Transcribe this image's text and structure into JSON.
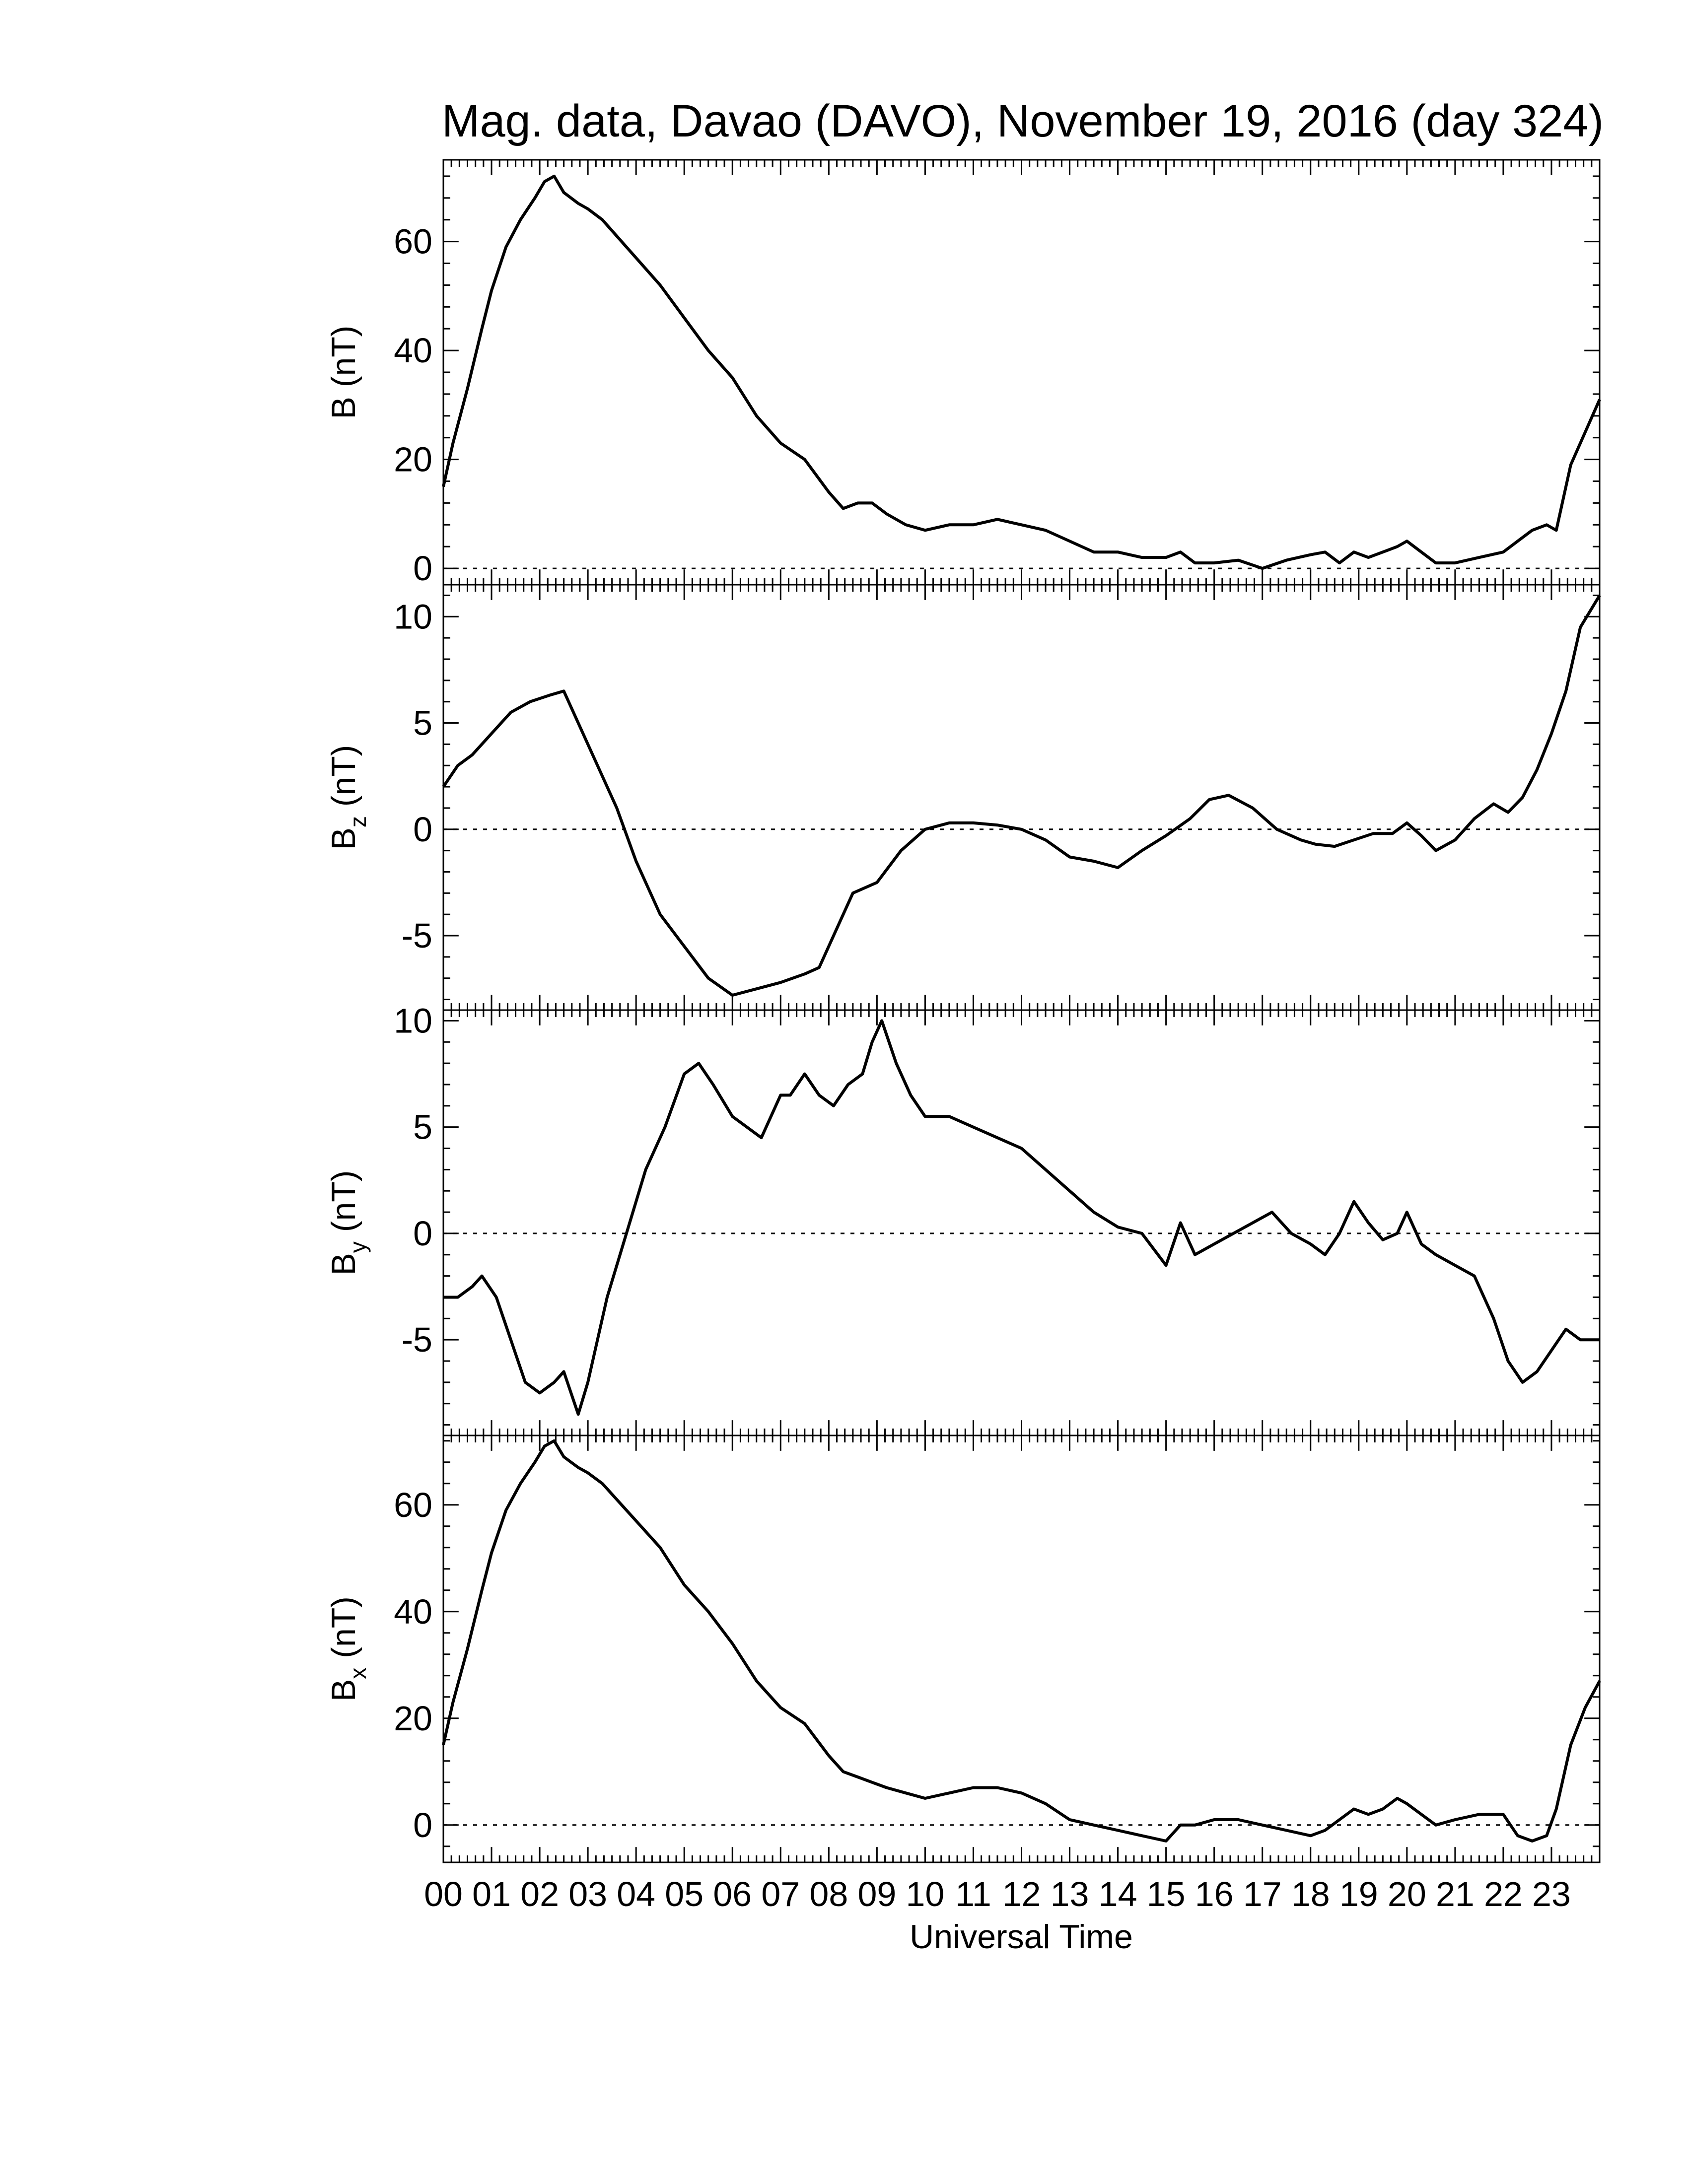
{
  "chart_data": {
    "title": "Mag. data, Davao (DAVO), November 19, 2016 (day 324)",
    "xlabel": "Universal Time",
    "x_tick_labels": [
      "00",
      "01",
      "02",
      "03",
      "04",
      "05",
      "06",
      "07",
      "08",
      "09",
      "10",
      "11",
      "12",
      "13",
      "14",
      "15",
      "16",
      "17",
      "18",
      "19",
      "20",
      "21",
      "22",
      "23"
    ],
    "xlim": [
      0,
      24
    ],
    "zero_line": "dotted",
    "panels": [
      {
        "type": "line",
        "ylabel_main": "B",
        "ylabel_sub": "",
        "ylabel_unit": " (nT)",
        "ylim": [
          -3,
          75
        ],
        "yticks": [
          0,
          20,
          40,
          60
        ],
        "x": [
          0,
          0.2,
          0.5,
          0.8,
          1.0,
          1.3,
          1.6,
          1.9,
          2.1,
          2.3,
          2.5,
          2.8,
          3.0,
          3.3,
          3.6,
          4.0,
          4.5,
          5.0,
          5.5,
          6.0,
          6.5,
          7.0,
          7.5,
          8.0,
          8.3,
          8.6,
          8.9,
          9.2,
          9.6,
          10.0,
          10.5,
          11.0,
          11.5,
          12.0,
          12.5,
          13.0,
          13.5,
          14.0,
          14.5,
          15.0,
          15.3,
          15.6,
          16.0,
          16.5,
          17.0,
          17.5,
          18.0,
          18.3,
          18.6,
          18.9,
          19.2,
          19.5,
          19.8,
          20.0,
          20.3,
          20.6,
          21.0,
          21.5,
          22.0,
          22.3,
          22.6,
          22.9,
          23.1,
          23.4,
          23.7,
          24.0
        ],
        "y": [
          15,
          23,
          33,
          44,
          51,
          59,
          64,
          68,
          71,
          72,
          69,
          67,
          66,
          64,
          61,
          57,
          52,
          46,
          40,
          35,
          28,
          23,
          20,
          14,
          11,
          12,
          12,
          10,
          8,
          7,
          8,
          8,
          9,
          8,
          7,
          5,
          3,
          3,
          2,
          2,
          3,
          1,
          1,
          1.5,
          0,
          1.5,
          2.5,
          3,
          1,
          3,
          2,
          3,
          4,
          5,
          3,
          1,
          1,
          2,
          3,
          5,
          7,
          8,
          7,
          19,
          25,
          31
        ]
      },
      {
        "type": "line",
        "ylabel_main": "B",
        "ylabel_sub": "z",
        "ylabel_unit": " (nT)",
        "ylim": [
          -8.5,
          11.5
        ],
        "yticks": [
          -5,
          0,
          5,
          10
        ],
        "x": [
          0,
          0.3,
          0.6,
          1.0,
          1.4,
          1.8,
          2.2,
          2.5,
          2.8,
          3.2,
          3.6,
          4.0,
          4.5,
          5.0,
          5.5,
          6.0,
          6.5,
          7.0,
          7.5,
          7.8,
          8.1,
          8.5,
          9.0,
          9.5,
          10.0,
          10.5,
          11.0,
          11.5,
          12.0,
          12.5,
          13.0,
          13.5,
          14.0,
          14.5,
          15.0,
          15.5,
          15.9,
          16.3,
          16.8,
          17.3,
          17.8,
          18.1,
          18.5,
          18.9,
          19.3,
          19.7,
          20.0,
          20.3,
          20.6,
          21.0,
          21.4,
          21.8,
          22.1,
          22.4,
          22.7,
          23.0,
          23.3,
          23.6,
          24.0
        ],
        "y": [
          2,
          3,
          3.5,
          4.5,
          5.5,
          6,
          6.3,
          6.5,
          5,
          3,
          1,
          -1.5,
          -4,
          -5.5,
          -7,
          -7.8,
          -7.5,
          -7.2,
          -6.8,
          -6.5,
          -5,
          -3,
          -2.5,
          -1,
          0,
          0.3,
          0.3,
          0.2,
          0,
          -0.5,
          -1.3,
          -1.5,
          -1.8,
          -1,
          -0.3,
          0.5,
          1.4,
          1.6,
          1,
          0,
          -0.5,
          -0.7,
          -0.8,
          -0.5,
          -0.2,
          -0.2,
          0.3,
          -0.3,
          -1,
          -0.5,
          0.5,
          1.2,
          0.8,
          1.5,
          2.8,
          4.5,
          6.5,
          9.5,
          11
        ]
      },
      {
        "type": "line",
        "ylabel_main": "B",
        "ylabel_sub": "y",
        "ylabel_unit": " (nT)",
        "ylim": [
          -9.5,
          10.5
        ],
        "yticks": [
          -5,
          0,
          5,
          10
        ],
        "x": [
          0,
          0.3,
          0.6,
          0.8,
          1.1,
          1.4,
          1.7,
          2.0,
          2.3,
          2.5,
          2.8,
          3.0,
          3.4,
          3.8,
          4.2,
          4.6,
          5.0,
          5.3,
          5.6,
          6.0,
          6.3,
          6.6,
          7.0,
          7.2,
          7.5,
          7.8,
          8.1,
          8.4,
          8.7,
          8.9,
          9.1,
          9.4,
          9.7,
          10.0,
          10.5,
          11.0,
          11.5,
          12.0,
          12.5,
          13.0,
          13.5,
          14.0,
          14.5,
          15.0,
          15.3,
          15.6,
          16.0,
          16.4,
          16.8,
          17.2,
          17.6,
          18.0,
          18.3,
          18.6,
          18.9,
          19.2,
          19.5,
          19.8,
          20.0,
          20.3,
          20.6,
          21.0,
          21.4,
          21.8,
          22.1,
          22.4,
          22.7,
          23.0,
          23.3,
          23.6,
          24.0
        ],
        "y": [
          -3,
          -3,
          -2.5,
          -2,
          -3,
          -5,
          -7,
          -7.5,
          -7,
          -6.5,
          -8.5,
          -7,
          -3,
          0,
          3,
          5,
          7.5,
          8,
          7,
          5.5,
          5,
          4.5,
          6.5,
          6.5,
          7.5,
          6.5,
          6,
          7,
          7.5,
          9,
          10,
          8,
          6.5,
          5.5,
          5.5,
          5,
          4.5,
          4,
          3,
          2,
          1,
          0.3,
          0,
          -1.5,
          0.5,
          -1,
          -0.5,
          0,
          0.5,
          1,
          0,
          -0.5,
          -1,
          0,
          1.5,
          0.5,
          -0.3,
          0,
          1,
          -0.5,
          -1,
          -1.5,
          -2,
          -4,
          -6,
          -7,
          -6.5,
          -5.5,
          -4.5,
          -5,
          -5
        ]
      },
      {
        "type": "line",
        "ylabel_main": "B",
        "ylabel_sub": "x",
        "ylabel_unit": " (nT)",
        "ylim": [
          -7,
          73
        ],
        "yticks": [
          0,
          20,
          40,
          60
        ],
        "x": [
          0,
          0.2,
          0.5,
          0.8,
          1.0,
          1.3,
          1.6,
          1.9,
          2.1,
          2.3,
          2.5,
          2.8,
          3.0,
          3.3,
          3.6,
          4.0,
          4.5,
          5.0,
          5.5,
          6.0,
          6.5,
          7.0,
          7.5,
          8.0,
          8.3,
          8.6,
          8.9,
          9.2,
          9.6,
          10.0,
          10.5,
          11.0,
          11.5,
          12.0,
          12.5,
          13.0,
          13.5,
          14.0,
          14.5,
          15.0,
          15.3,
          15.6,
          16.0,
          16.5,
          17.0,
          17.5,
          18.0,
          18.3,
          18.6,
          18.9,
          19.2,
          19.5,
          19.8,
          20.0,
          20.3,
          20.6,
          21.0,
          21.5,
          22.0,
          22.3,
          22.6,
          22.9,
          23.1,
          23.4,
          23.7,
          24.0
        ],
        "y": [
          15,
          23,
          33,
          44,
          51,
          59,
          64,
          68,
          71,
          72,
          69,
          67,
          66,
          64,
          61,
          57,
          52,
          45,
          40,
          34,
          27,
          22,
          19,
          13,
          10,
          9,
          8,
          7,
          6,
          5,
          6,
          7,
          7,
          6,
          4,
          1,
          0,
          -1,
          -2,
          -3,
          0,
          0,
          1,
          1,
          0,
          -1,
          -2,
          -1,
          1,
          3,
          2,
          3,
          5,
          4,
          2,
          0,
          1,
          2,
          2,
          -2,
          -3,
          -2,
          3,
          15,
          22,
          27
        ]
      }
    ]
  }
}
